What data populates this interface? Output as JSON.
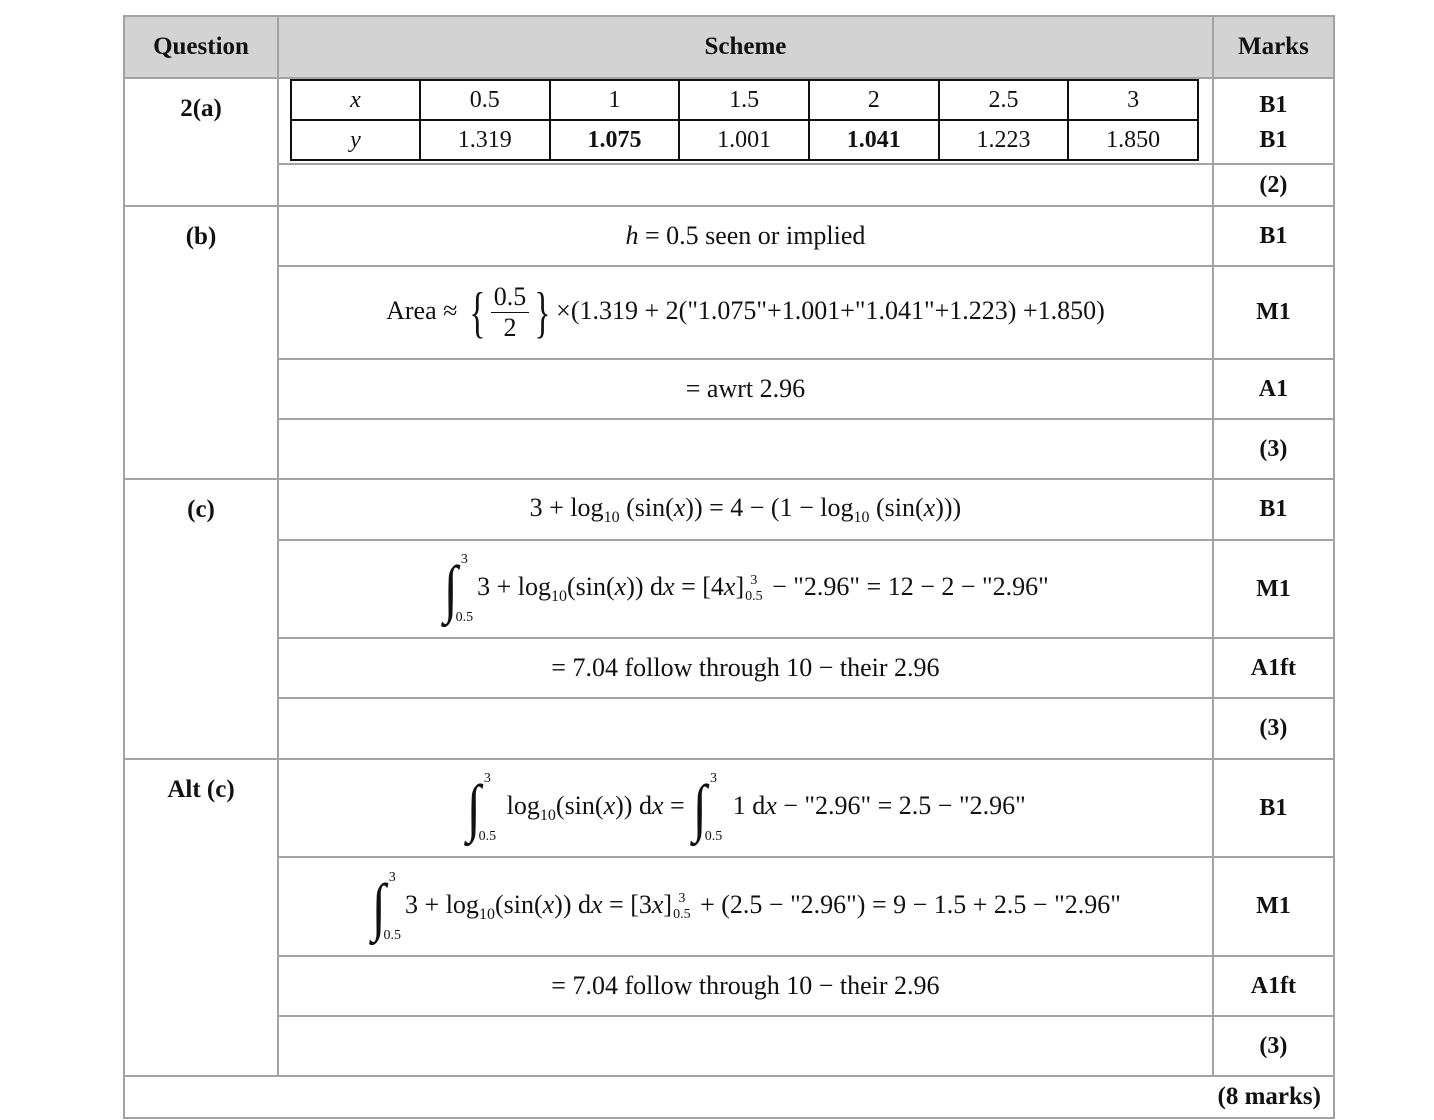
{
  "header": {
    "question": "Question",
    "scheme": "Scheme",
    "marks": "Marks"
  },
  "part_a": {
    "label": "2(a)",
    "x_label": "x",
    "y_label": "y",
    "x_values": [
      "0.5",
      "1",
      "1.5",
      "2",
      "2.5",
      "3"
    ],
    "y_values": [
      "1.319",
      "1.075",
      "1.001",
      "1.041",
      "1.223",
      "1.850"
    ],
    "y_bold": [
      false,
      true,
      false,
      true,
      false,
      false
    ],
    "marks": [
      "B1",
      "B1"
    ],
    "total": "(2)"
  },
  "part_b": {
    "label": "(b)",
    "rows": [
      {
        "tokens": [
          [
            "i",
            "h"
          ],
          [
            "t",
            " = 0.5  "
          ],
          [
            "t",
            "seen or implied"
          ]
        ],
        "mark": "B1"
      },
      {
        "tokens": [
          [
            "t",
            "Area ≈ "
          ],
          [
            "frac",
            "0.5",
            "2"
          ],
          [
            "t",
            "×(1.319 + 2(\"1.075\"+1.001+\"1.041\"+1.223) +1.850)"
          ]
        ],
        "mark": "M1"
      },
      {
        "tokens": [
          [
            "t",
            "= awrt 2.96"
          ]
        ],
        "mark": "A1"
      },
      {
        "tokens": [],
        "mark": "(3)"
      }
    ]
  },
  "part_c": {
    "label": "(c)",
    "rows": [
      {
        "tokens": [
          [
            "t",
            "3 + log"
          ],
          [
            "sub",
            "10"
          ],
          [
            "t",
            " (sin("
          ],
          [
            "i",
            "x"
          ],
          [
            "t",
            ")) = 4 − (1 − log"
          ],
          [
            "sub",
            "10"
          ],
          [
            "t",
            " (sin("
          ],
          [
            "i",
            "x"
          ],
          [
            "t",
            ")))"
          ]
        ],
        "mark": "B1"
      },
      {
        "tokens": [
          [
            "int",
            "0.5",
            "3"
          ],
          [
            "t",
            "3 + log"
          ],
          [
            "sub",
            "10"
          ],
          [
            "t",
            "(sin("
          ],
          [
            "i",
            "x"
          ],
          [
            "t",
            ")) d"
          ],
          [
            "i",
            "x"
          ],
          [
            "t",
            " = [4"
          ],
          [
            "i",
            "x"
          ],
          [
            "t",
            "]"
          ],
          [
            "lim",
            "0.5",
            "3"
          ],
          [
            "t",
            " − \"2.96\" = 12 − 2 − \"2.96\""
          ]
        ],
        "mark": "M1"
      },
      {
        "tokens": [
          [
            "t",
            "= 7.04   follow through 10 − their 2.96"
          ]
        ],
        "mark": "A1ft"
      },
      {
        "tokens": [],
        "mark": "(3)"
      }
    ]
  },
  "part_alt_c": {
    "label": "Alt (c)",
    "rows": [
      {
        "tokens": [
          [
            "int",
            "0.5",
            "3"
          ],
          [
            "t",
            " log"
          ],
          [
            "sub",
            "10"
          ],
          [
            "t",
            "(sin("
          ],
          [
            "i",
            "x"
          ],
          [
            "t",
            ")) d"
          ],
          [
            "i",
            "x"
          ],
          [
            "t",
            " = "
          ],
          [
            "int",
            "0.5",
            "3"
          ],
          [
            "t",
            " 1 d"
          ],
          [
            "i",
            "x"
          ],
          [
            "t",
            " − \"2.96\" = 2.5 − \"2.96\""
          ]
        ],
        "mark": "B1"
      },
      {
        "tokens": [
          [
            "int",
            "0.5",
            "3"
          ],
          [
            "t",
            "3 + log"
          ],
          [
            "sub",
            "10"
          ],
          [
            "t",
            "(sin("
          ],
          [
            "i",
            "x"
          ],
          [
            "t",
            ")) d"
          ],
          [
            "i",
            "x"
          ],
          [
            "t",
            " = [3"
          ],
          [
            "i",
            "x"
          ],
          [
            "t",
            "]"
          ],
          [
            "lim",
            "0.5",
            "3"
          ],
          [
            "t",
            " + (2.5 − \"2.96\") = 9 − 1.5 + 2.5 − \"2.96\""
          ]
        ],
        "mark": "M1"
      },
      {
        "tokens": [
          [
            "t",
            "= 7.04   follow through 10 − their 2.96"
          ]
        ],
        "mark": "A1ft"
      },
      {
        "tokens": [],
        "mark": "(3)"
      }
    ]
  },
  "total": "(8 marks)"
}
